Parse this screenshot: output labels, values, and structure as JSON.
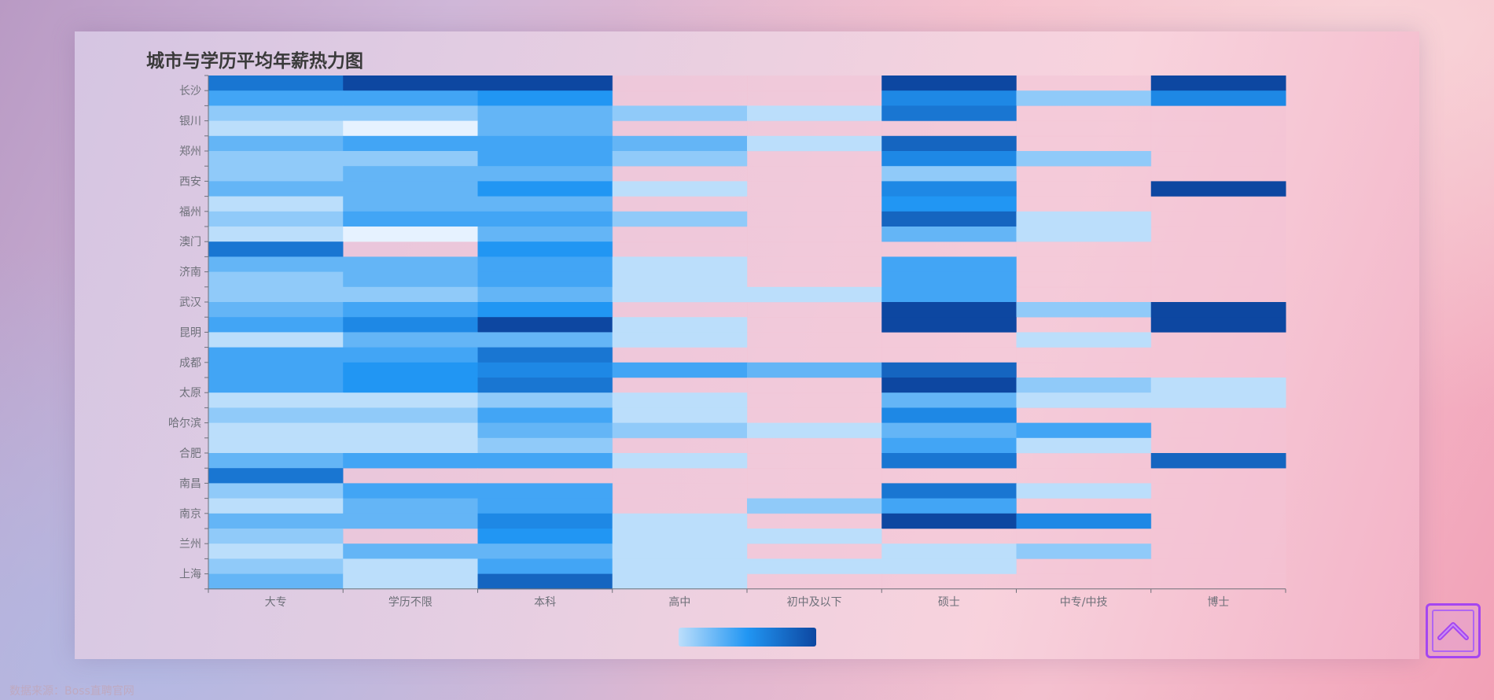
{
  "page": {
    "source_note": "数据来源：Boss直聘官网",
    "back_to_top_icon": "chevron-up-icon"
  },
  "chart_data": {
    "type": "heatmap",
    "title": "城市与学历平均年薪热力图",
    "x_categories": [
      "大专",
      "学历不限",
      "本科",
      "高中",
      "初中及以下",
      "硕士",
      "中专/中技",
      "博士"
    ],
    "y_rows": [
      "长沙",
      "",
      "银川",
      "",
      "郑州",
      "",
      "西安",
      "",
      "福州",
      "",
      "澳门",
      "",
      "济南",
      "",
      "武汉",
      "",
      "昆明",
      "",
      "成都",
      "",
      "太原",
      "",
      "哈尔滨",
      "",
      "合肥",
      "",
      "南昌",
      "",
      "南京",
      "",
      "兰州",
      "",
      "上海",
      ""
    ],
    "grid": false,
    "legend": "bottom-center visual map",
    "color_scale": [
      "#e6f2ff",
      "#bbdefb",
      "#90caf9",
      "#64b5f6",
      "#42a5f5",
      "#2196f3",
      "#1e88e5",
      "#1976d2",
      "#1565c0",
      "#0d47a1"
    ],
    "empty_color": "#f3c3d6",
    "value_range": [
      0,
      9
    ],
    "values": [
      [
        7,
        9,
        9,
        -1,
        -1,
        9,
        -1,
        9
      ],
      [
        4,
        4,
        5,
        -1,
        -1,
        6,
        2,
        6
      ],
      [
        2,
        2,
        3,
        2,
        1,
        7,
        -1,
        -1
      ],
      [
        1,
        0,
        3,
        -1,
        -1,
        -1,
        -1,
        -1
      ],
      [
        3,
        4,
        4,
        3,
        1,
        8,
        -1,
        -1
      ],
      [
        2,
        2,
        4,
        2,
        -1,
        6,
        2,
        -1
      ],
      [
        2,
        3,
        3,
        -1,
        -1,
        2,
        -1,
        -1
      ],
      [
        3,
        3,
        5,
        1,
        -1,
        6,
        -1,
        9
      ],
      [
        1,
        3,
        3,
        -1,
        -1,
        5,
        -1,
        -1
      ],
      [
        2,
        4,
        4,
        2,
        -1,
        8,
        1,
        -1
      ],
      [
        1,
        0,
        3,
        -1,
        -1,
        3,
        1,
        -1
      ],
      [
        7,
        -1,
        5,
        -1,
        -1,
        -1,
        -1,
        -1
      ],
      [
        3,
        3,
        4,
        1,
        -1,
        4,
        -1,
        -1
      ],
      [
        2,
        3,
        4,
        1,
        -1,
        4,
        -1,
        -1
      ],
      [
        2,
        2,
        3,
        1,
        1,
        4,
        -1,
        -1
      ],
      [
        3,
        4,
        5,
        -1,
        -1,
        9,
        2,
        9
      ],
      [
        4,
        6,
        9,
        1,
        -1,
        9,
        -1,
        9
      ],
      [
        1,
        3,
        3,
        1,
        -1,
        -1,
        1,
        -1
      ],
      [
        4,
        4,
        7,
        -1,
        -1,
        -1,
        -1,
        -1
      ],
      [
        4,
        5,
        6,
        4,
        3,
        8,
        -1,
        -1
      ],
      [
        4,
        5,
        7,
        -1,
        -1,
        9,
        2,
        1
      ],
      [
        1,
        1,
        2,
        1,
        -1,
        3,
        1,
        1
      ],
      [
        2,
        2,
        4,
        1,
        -1,
        6,
        -1,
        -1
      ],
      [
        1,
        1,
        3,
        2,
        1,
        3,
        4,
        -1
      ],
      [
        1,
        1,
        2,
        -1,
        -1,
        4,
        1,
        -1
      ],
      [
        3,
        4,
        4,
        1,
        -1,
        7,
        -1,
        8
      ],
      [
        7,
        -1,
        -1,
        -1,
        -1,
        -1,
        -1,
        -1
      ],
      [
        2,
        4,
        4,
        -1,
        -1,
        7,
        1,
        -1
      ],
      [
        1,
        3,
        4,
        -1,
        2,
        4,
        -1,
        -1
      ],
      [
        3,
        3,
        6,
        1,
        -1,
        9,
        6,
        -1
      ],
      [
        2,
        -1,
        5,
        1,
        1,
        -1,
        -1,
        -1
      ],
      [
        1,
        3,
        3,
        1,
        -1,
        1,
        2,
        -1
      ],
      [
        2,
        1,
        4,
        1,
        1,
        1,
        -1,
        -1
      ],
      [
        3,
        1,
        8,
        1,
        -1,
        -1,
        -1,
        -1
      ]
    ]
  }
}
